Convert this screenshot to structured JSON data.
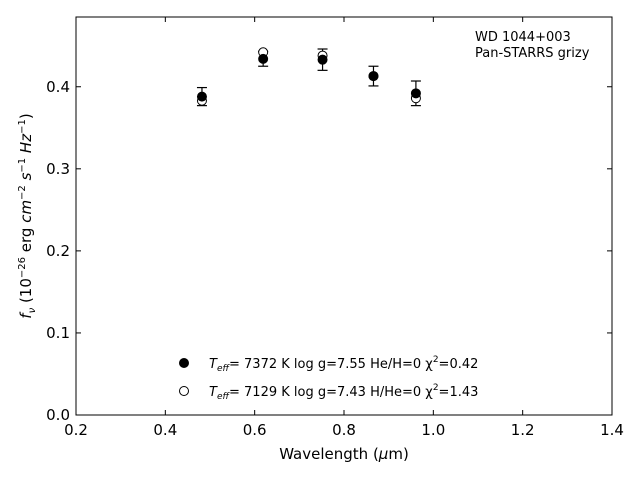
{
  "chart_data": {
    "type": "scatter",
    "xlabel": "Wavelength (μm)",
    "ylabel": "f_ν (10^−26 erg cm^−2 s^−1 Hz^−1)",
    "xlim": [
      0.2,
      1.4
    ],
    "ylim": [
      0.0,
      0.485
    ],
    "xticks": [
      "0.2",
      "0.4",
      "0.6",
      "0.8",
      "1.0",
      "1.2",
      "1.4"
    ],
    "yticks": [
      "0.0",
      "0.1",
      "0.2",
      "0.3",
      "0.4"
    ],
    "annotation": [
      "WD 1044+003",
      "Pan-STARRS grizy"
    ],
    "observed": {
      "x": [
        0.482,
        0.619,
        0.752,
        0.866,
        0.961
      ],
      "y": [
        0.388,
        0.434,
        0.433,
        0.413,
        0.392
      ],
      "yerr": [
        0.011,
        0.009,
        0.013,
        0.012,
        0.015
      ]
    },
    "series": [
      {
        "name": "Teff= 7372 K log g=7.55 He/H=0 χ²=0.42",
        "marker": "filled-circle",
        "x": [
          0.482,
          0.619,
          0.752,
          0.866,
          0.961
        ],
        "y": [
          0.388,
          0.434,
          0.433,
          0.413,
          0.392
        ]
      },
      {
        "name": "Teff= 7129 K log g=7.43 H/He=0 χ²=1.43",
        "marker": "open-circle",
        "x": [
          0.482,
          0.619,
          0.752,
          0.866,
          0.961
        ],
        "y": [
          0.383,
          0.442,
          0.438,
          0.413,
          0.386
        ]
      }
    ],
    "legend": [
      {
        "teff_label": "T",
        "teff_sub": "eff",
        "text": "=  7372 K  log g=7.55  He/H=0  χ",
        "sup": "2",
        "tail": "=0.42"
      },
      {
        "teff_label": "T",
        "teff_sub": "eff",
        "text": "=  7129 K  log g=7.43  H/He=0  χ",
        "sup": "2",
        "tail": "=1.43"
      }
    ],
    "legend_position": "bottom-center",
    "grid": false,
    "colors": {
      "markers": "#000000",
      "axes": "#000000"
    }
  }
}
